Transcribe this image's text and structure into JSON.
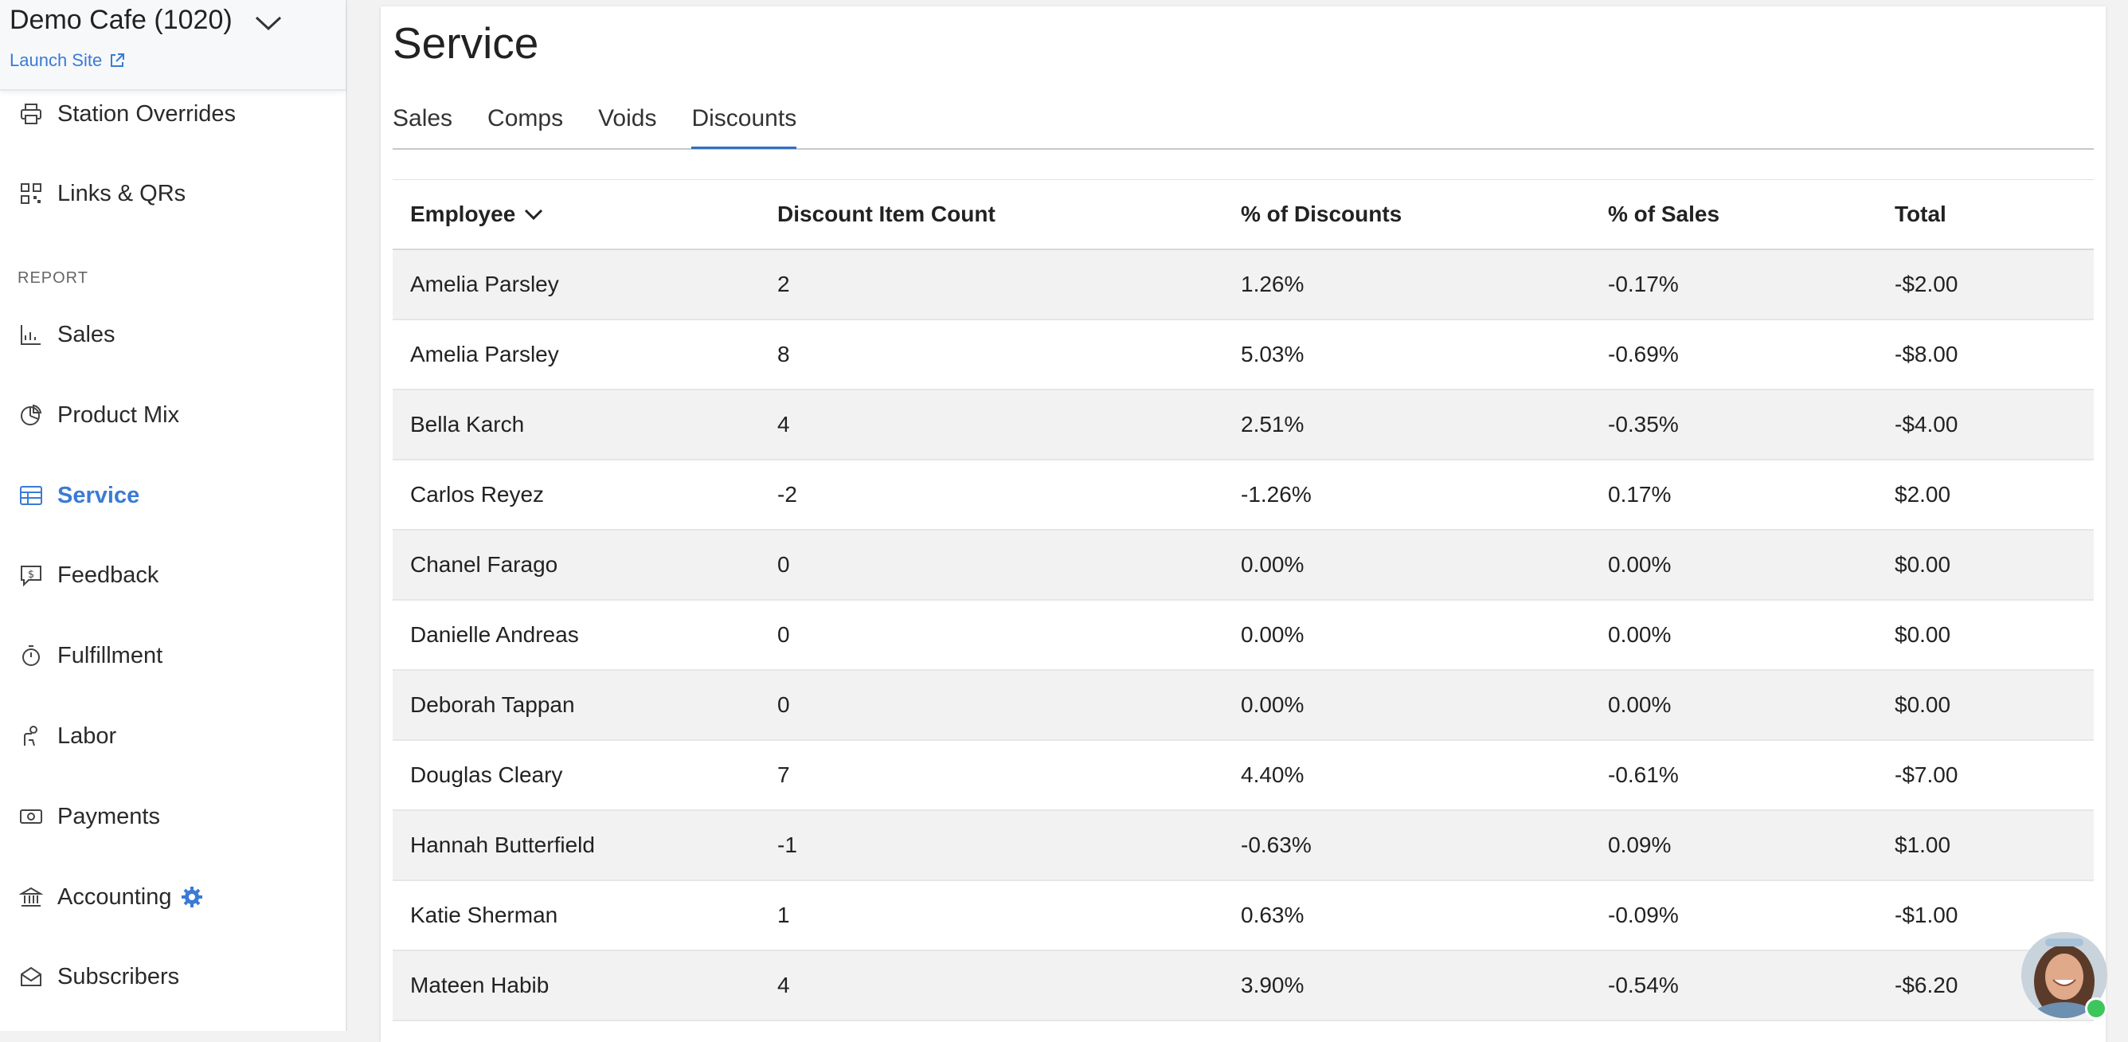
{
  "sidebar": {
    "store_name": "Demo Cafe (1020)",
    "launch_site": "Launch Site",
    "top_items": [
      {
        "label": "Station Overrides",
        "icon": "printer-icon"
      },
      {
        "label": "Links & QRs",
        "icon": "qr-code-icon"
      }
    ],
    "section_header": "REPORT",
    "items": [
      {
        "label": "Sales",
        "icon": "line-chart-icon"
      },
      {
        "label": "Product Mix",
        "icon": "pie-chart-icon"
      },
      {
        "label": "Service",
        "icon": "table-icon",
        "active": true
      },
      {
        "label": "Feedback",
        "icon": "feedback-dollar-icon"
      },
      {
        "label": "Fulfillment",
        "icon": "stopwatch-icon"
      },
      {
        "label": "Labor",
        "icon": "person-icon"
      },
      {
        "label": "Payments",
        "icon": "money-icon"
      },
      {
        "label": "Accounting",
        "icon": "bank-icon",
        "badge_icon": "gear-icon"
      },
      {
        "label": "Subscribers",
        "icon": "envelope-icon"
      }
    ]
  },
  "page": {
    "title": "Service",
    "tabs": [
      "Sales",
      "Comps",
      "Voids",
      "Discounts"
    ],
    "active_tab": "Discounts"
  },
  "table": {
    "headers": [
      "Employee",
      "Discount Item Count",
      "% of Discounts",
      "% of Sales",
      "Total"
    ],
    "rows": [
      [
        "Amelia Parsley",
        "2",
        "1.26%",
        "-0.17%",
        "-$2.00"
      ],
      [
        "Amelia Parsley",
        "8",
        "5.03%",
        "-0.69%",
        "-$8.00"
      ],
      [
        "Bella Karch",
        "4",
        "2.51%",
        "-0.35%",
        "-$4.00"
      ],
      [
        "Carlos Reyez",
        "-2",
        "-1.26%",
        "0.17%",
        "$2.00"
      ],
      [
        "Chanel Farago",
        "0",
        "0.00%",
        "0.00%",
        "$0.00"
      ],
      [
        "Danielle Andreas",
        "0",
        "0.00%",
        "0.00%",
        "$0.00"
      ],
      [
        "Deborah Tappan",
        "0",
        "0.00%",
        "0.00%",
        "$0.00"
      ],
      [
        "Douglas Cleary",
        "7",
        "4.40%",
        "-0.61%",
        "-$7.00"
      ],
      [
        "Hannah Butterfield",
        "-1",
        "-0.63%",
        "0.09%",
        "$1.00"
      ],
      [
        "Katie Sherman",
        "1",
        "0.63%",
        "-0.09%",
        "-$1.00"
      ],
      [
        "Mateen Habib",
        "4",
        "3.90%",
        "-0.54%",
        "-$6.20"
      ]
    ]
  },
  "colors": {
    "accent": "#3a7bd5",
    "tab_underline": "#2f6fc4",
    "online": "#3cc65c"
  }
}
